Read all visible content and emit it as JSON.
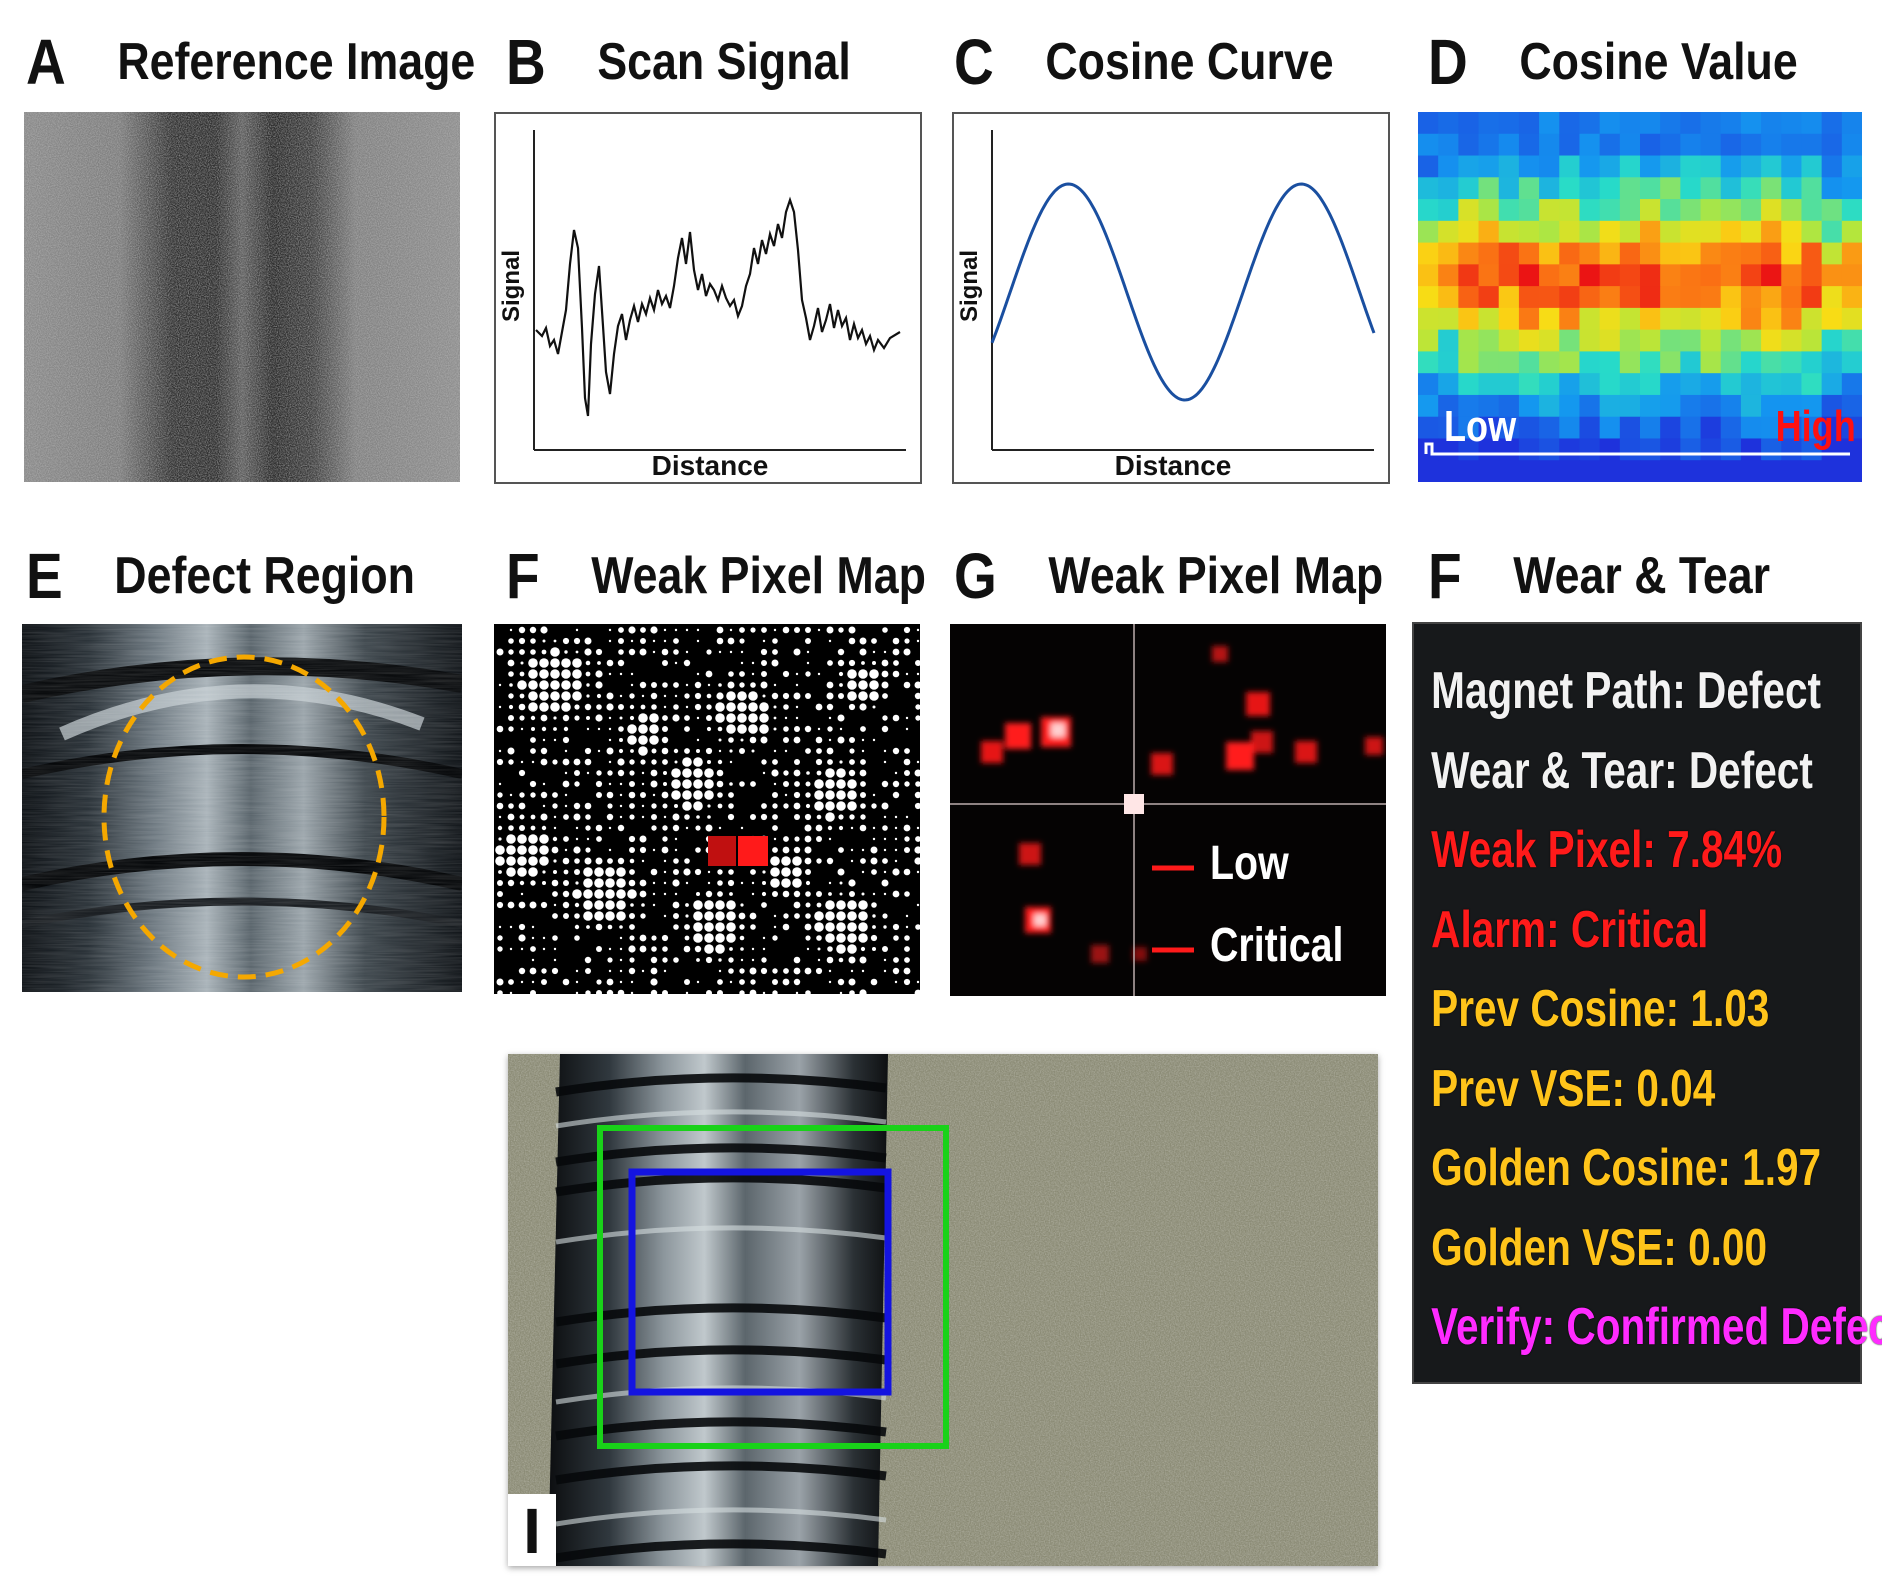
{
  "panels": {
    "a": {
      "letter": "A",
      "title": "Reference Image"
    },
    "b": {
      "letter": "B",
      "title": "Scan Signal",
      "ylabel": "Signal",
      "xlabel": "Distance"
    },
    "c": {
      "letter": "C",
      "title": "Cosine Curve",
      "ylabel": "Signal",
      "xlabel": "Distance"
    },
    "d": {
      "letter": "D",
      "title": "Cosine Value",
      "low_label": "Low",
      "high_label": "High"
    },
    "e": {
      "letter": "E",
      "title": "Defect Region"
    },
    "f": {
      "letter": "F",
      "title": "Weak Pixel Map"
    },
    "g": {
      "letter": "G",
      "title": "Weak Pixel Map",
      "legend_low": "Low",
      "legend_critical": "Critical"
    },
    "h": {
      "letter": "F",
      "title": "Wear & Tear"
    },
    "i": {
      "letter": "I"
    }
  },
  "info_lines": [
    {
      "text": "Magnet Path: Defect",
      "color": "white"
    },
    {
      "text": "Wear & Tear: Defect",
      "color": "white"
    },
    {
      "text": "Weak Pixel: 7.84%",
      "color": "red"
    },
    {
      "text": "Alarm: Critical",
      "color": "red"
    },
    {
      "text": "Prev Cosine: 1.03",
      "color": "yellow"
    },
    {
      "text": "Prev VSE: 0.04",
      "color": "yellow"
    },
    {
      "text": "Golden Cosine: 1.97",
      "color": "yellow"
    },
    {
      "text": "Golden VSE: 0.00",
      "color": "yellow"
    },
    {
      "text": "Verify: Confirmed Defect",
      "color": "magenta"
    }
  ],
  "colors": {
    "curve": "#1a4fa0",
    "ellipse": "#f5a800",
    "box_green": "#19d219",
    "box_blue": "#1414e0",
    "critical": "#ff1a1a",
    "warning": "#ffc41a",
    "verify": "#ff2bff"
  }
}
